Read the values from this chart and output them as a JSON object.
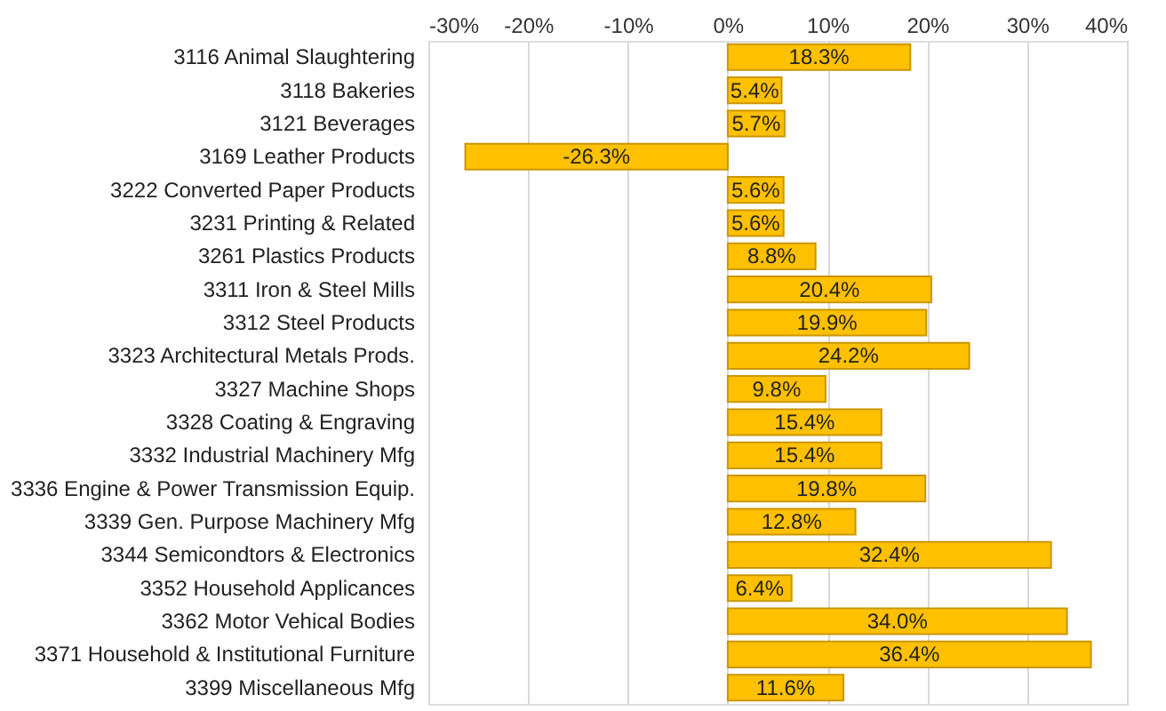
{
  "chart_data": {
    "type": "bar",
    "orientation": "horizontal",
    "categories": [
      "3116 Animal Slaughtering",
      "3118 Bakeries",
      "3121 Beverages",
      "3169 Leather Products",
      "3222 Converted Paper Products",
      "3231 Printing & Related",
      "3261 Plastics Products",
      "3311 Iron & Steel Mills",
      "3312 Steel Products",
      "3323 Architectural Metals Prods.",
      "3327 Machine Shops",
      "3328 Coating & Engraving",
      "3332 Industrial Machinery Mfg",
      "3336 Engine & Power Transmission Equip.",
      "3339 Gen. Purpose Machinery Mfg",
      "3344 Semicondtors & Electronics",
      "3352 Household Applicances",
      "3362 Motor Vehical Bodies",
      "3371 Household & Institutional Furniture",
      "3399 Miscellaneous Mfg"
    ],
    "values": [
      18.3,
      5.4,
      5.7,
      -26.3,
      5.6,
      5.6,
      8.8,
      20.4,
      19.9,
      24.2,
      9.8,
      15.4,
      15.4,
      19.8,
      12.8,
      32.4,
      6.4,
      34.0,
      36.4,
      11.6
    ],
    "value_labels": [
      "18.3%",
      "5.4%",
      "5.7%",
      "-26.3%",
      "5.6%",
      "5.6%",
      "8.8%",
      "20.4%",
      "19.9%",
      "24.2%",
      "9.8%",
      "15.4%",
      "15.4%",
      "19.8%",
      "12.8%",
      "32.4%",
      "6.4%",
      "34.0%",
      "36.4%",
      "11.6%"
    ],
    "color": "#ffc000",
    "xlim": [
      -30,
      40
    ],
    "xticks": [
      {
        "value": -30,
        "label": "-30%"
      },
      {
        "value": -20,
        "label": "-20%"
      },
      {
        "value": -10,
        "label": "-10%"
      },
      {
        "value": 0,
        "label": "0%"
      },
      {
        "value": 10,
        "label": "10%"
      },
      {
        "value": 20,
        "label": "20%"
      },
      {
        "value": 30,
        "label": "30%"
      },
      {
        "value": 40,
        "label": "40%"
      }
    ],
    "grid": "x"
  }
}
